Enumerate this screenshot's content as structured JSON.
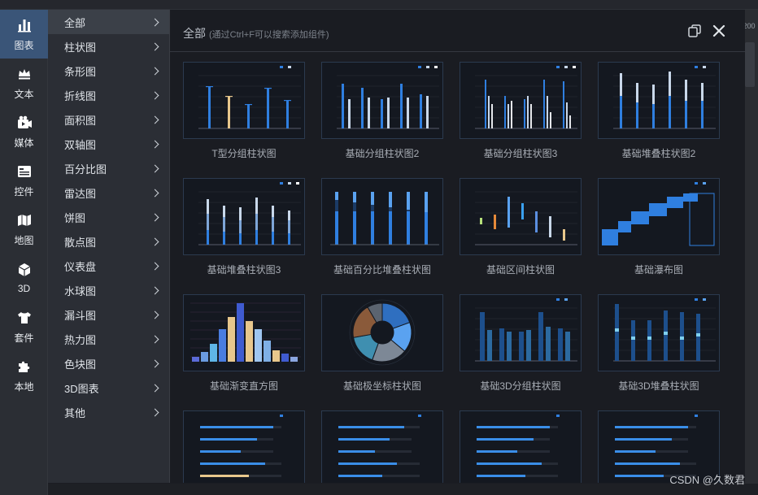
{
  "ruler": {
    "label": "200"
  },
  "rail": [
    {
      "label": "图表",
      "icon": "bar-chart-icon",
      "active": true
    },
    {
      "label": "文本",
      "icon": "crown-text-icon",
      "active": false
    },
    {
      "label": "媒体",
      "icon": "media-icon",
      "active": false
    },
    {
      "label": "控件",
      "icon": "widget-icon",
      "active": false
    },
    {
      "label": "地图",
      "icon": "map-icon",
      "active": false
    },
    {
      "label": "3D",
      "icon": "cube-icon",
      "active": false
    },
    {
      "label": "套件",
      "icon": "shirt-icon",
      "active": false
    },
    {
      "label": "本地",
      "icon": "puzzle-icon",
      "active": false
    }
  ],
  "menu": [
    {
      "label": "全部",
      "active": true
    },
    {
      "label": "柱状图"
    },
    {
      "label": "条形图"
    },
    {
      "label": "折线图"
    },
    {
      "label": "面积图"
    },
    {
      "label": "双轴图"
    },
    {
      "label": "百分比图"
    },
    {
      "label": "雷达图"
    },
    {
      "label": "饼图"
    },
    {
      "label": "散点图"
    },
    {
      "label": "仪表盘"
    },
    {
      "label": "水球图"
    },
    {
      "label": "漏斗图"
    },
    {
      "label": "热力图"
    },
    {
      "label": "色块图"
    },
    {
      "label": "3D图表"
    },
    {
      "label": "其他"
    }
  ],
  "panel": {
    "title": "全部",
    "hint": "(通过Ctrl+F可以搜索添加组件)"
  },
  "cards": [
    {
      "label": "T型分组柱状图",
      "kind": "tbar"
    },
    {
      "label": "基础分组柱状图2",
      "kind": "group2"
    },
    {
      "label": "基础分组柱状图3",
      "kind": "group3"
    },
    {
      "label": "基础堆叠柱状图2",
      "kind": "stack2"
    },
    {
      "label": "基础堆叠柱状图3",
      "kind": "stack3"
    },
    {
      "label": "基础百分比堆叠柱状图",
      "kind": "percent"
    },
    {
      "label": "基础区间柱状图",
      "kind": "range"
    },
    {
      "label": "基础瀑布图",
      "kind": "waterfall"
    },
    {
      "label": "基础渐变直方图",
      "kind": "hist"
    },
    {
      "label": "基础极坐标柱状图",
      "kind": "polar"
    },
    {
      "label": "基础3D分组柱状图",
      "kind": "g3d"
    },
    {
      "label": "基础3D堆叠柱状图",
      "kind": "s3d"
    },
    {
      "label": "",
      "kind": "hbar1"
    },
    {
      "label": "",
      "kind": "hbar2"
    },
    {
      "label": "",
      "kind": "hbar3"
    },
    {
      "label": "",
      "kind": "hbar4"
    }
  ],
  "watermark": "CSDN @久数君",
  "colors": {
    "accent": "#3a7bd5",
    "light": "#c7d7ea",
    "bg": "#141820"
  }
}
